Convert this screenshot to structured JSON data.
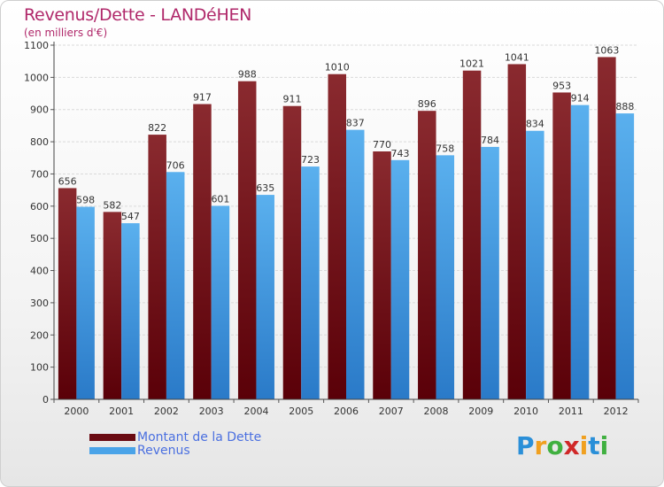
{
  "chart_data": {
    "type": "bar",
    "title": "Revenus/Dette - LANDéHEN",
    "subtitle": "(en milliers d'€)",
    "categories": [
      "2000",
      "2001",
      "2002",
      "2003",
      "2004",
      "2005",
      "2006",
      "2007",
      "2008",
      "2009",
      "2010",
      "2011",
      "2012"
    ],
    "series": [
      {
        "name": "Montant de la Dette",
        "color": "#7a1c22",
        "values": [
          656,
          582,
          822,
          917,
          988,
          911,
          1010,
          770,
          896,
          1021,
          1041,
          953,
          1063
        ]
      },
      {
        "name": "Revenus",
        "color": "#4aa3e8",
        "values": [
          598,
          547,
          706,
          601,
          635,
          723,
          837,
          743,
          758,
          784,
          834,
          914,
          888
        ]
      }
    ],
    "yticks": [
      0,
      100,
      200,
      300,
      400,
      500,
      600,
      700,
      800,
      900,
      1000,
      1100
    ],
    "ylim": [
      0,
      1100
    ],
    "grid": true,
    "legend_position": "bottom-left"
  },
  "logo": {
    "letters": [
      "P",
      "r",
      "o",
      "x",
      "i",
      "t",
      "i"
    ],
    "colors": [
      "#2a8fd8",
      "#f0a020",
      "#40b040",
      "#d02828",
      "#f0a020",
      "#2a8fd8",
      "#40b040"
    ]
  }
}
